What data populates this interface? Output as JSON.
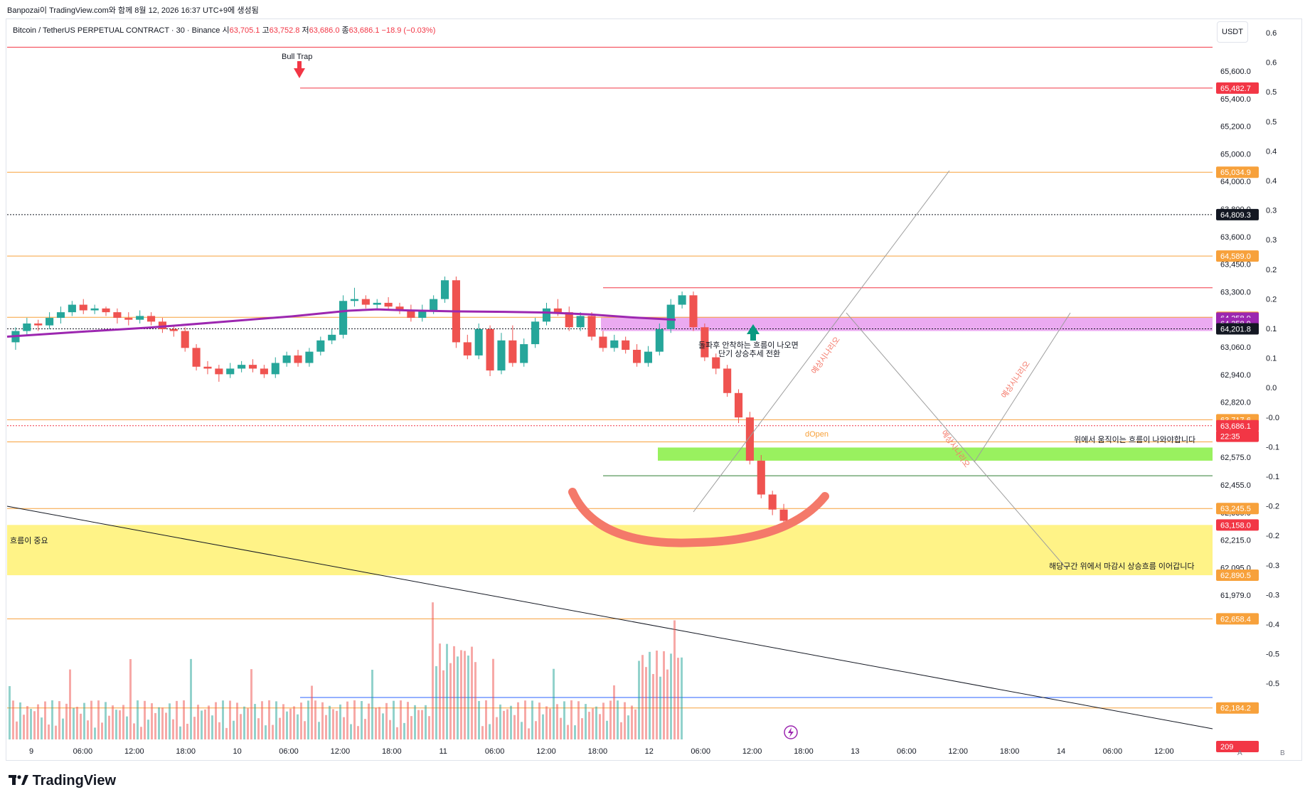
{
  "header": {
    "snapshot_text": "Banpozai이 TradingView.com와 함께 8월 12, 2026 16:37 UTC+9에 생성됨",
    "symbol": "Bitcoin / TetherUS PERPETUAL CONTRACT · 30 · Binance",
    "ohlc": {
      "open_label": "시",
      "open": "63,705.1",
      "high_label": "고",
      "high": "63,752.8",
      "low_label": "저",
      "low": "63,686.0",
      "close_label": "종",
      "close": "63,686.1",
      "change": "−18.9 (−0.03%)"
    },
    "currency": "USDT"
  },
  "footer": {
    "logo_text": "TradingView",
    "scale_buttons": [
      "A",
      "B"
    ]
  },
  "colors": {
    "up": "#26a69a",
    "down": "#ef5350",
    "orange_line": "#f7a13b",
    "red_line": "#f23645",
    "ma": "#9c27b0",
    "pink_zone": "#e9a1f0",
    "green_zone": "#8ef04e",
    "yellow_zone": "#fff27a",
    "curve": "#f4796a"
  },
  "chart_data": {
    "type": "candlestick",
    "timeframe": "30",
    "x_tick_labels": [
      "9",
      "06:00",
      "12:00",
      "18:00",
      "10",
      "06:00",
      "12:00",
      "18:00",
      "11",
      "06:00",
      "12:00",
      "18:00",
      "12",
      "06:00",
      "12:00",
      "18:00",
      "13",
      "06:00",
      "12:00",
      "18:00",
      "14",
      "06:00",
      "12:00"
    ],
    "y_tick_labels": [
      "65,600.0",
      "65,400.0",
      "65,200.0",
      "65,000.0",
      "64,000.0",
      "63,800.0",
      "63,600.0",
      "63,450.0",
      "63,300.0",
      "63,180.0",
      "63,060.0",
      "62,940.0",
      "62,820.0",
      "62,700.0",
      "62,575.0",
      "62,455.0",
      "62,335.0",
      "62,215.0",
      "62,095.0",
      "61,979.0"
    ],
    "ylim": [
      61960,
      65800
    ],
    "right_scale_labels": [
      "0.6",
      "0.6",
      "0.5",
      "0.5",
      "0.4",
      "0.4",
      "0.3",
      "0.3",
      "0.2",
      "0.2",
      "0.1",
      "0.1",
      "0.0",
      "-0.0",
      "-0.1",
      "-0.1",
      "-0.2",
      "-0.2",
      "-0.3",
      "-0.3",
      "-0.4",
      "-0.5",
      "-0.5"
    ],
    "price_tags": [
      {
        "label": "65,482.7",
        "color": "#f23645",
        "value": 65482.7
      },
      {
        "label": "65,034.9",
        "color": "#f7a13b",
        "value": 65034.9
      },
      {
        "label": "64,809.3",
        "color": "#131722",
        "value": 64809.3
      },
      {
        "label": "64,589.0",
        "color": "#f7a13b",
        "value": 64589.0
      },
      {
        "label": "64,263.0",
        "color": "#f7a13b",
        "value": 64263.0
      },
      {
        "label": "64,258.9",
        "color": "#9c27b0",
        "value": 64258.9
      },
      {
        "label": "64,258.9",
        "color": "#9c27b0",
        "value": 64230.0
      },
      {
        "label": "64,201.8",
        "color": "#131722",
        "value": 64201.8
      },
      {
        "label": "63,717.6",
        "color": "#f7a13b",
        "value": 63717.6
      },
      {
        "label": "63,686.1",
        "color": "#f23645",
        "value": 63686.1
      },
      {
        "label": "22:35",
        "color": "#f23645",
        "value": 63630.0
      },
      {
        "label": "63,245.5",
        "color": "#f7a13b",
        "value": 63245.5
      },
      {
        "label": "63,158.0",
        "color": "#f23645",
        "value": 63158.0
      },
      {
        "label": "62,890.5",
        "color": "#f7a13b",
        "value": 62890.5
      },
      {
        "label": "62,658.4",
        "color": "#f7a13b",
        "value": 62658.4
      },
      {
        "label": "62,184.2",
        "color": "#f7a13b",
        "value": 62184.2
      },
      {
        "label": "209",
        "color": "#f23645",
        "value": 61979.0
      }
    ],
    "horizontal_lines": [
      {
        "value": 65700,
        "color": "#f23645",
        "style": "solid",
        "x_start": "left"
      },
      {
        "value": 65482.7,
        "color": "#f23645",
        "style": "solid",
        "x_start": "bull-trap"
      },
      {
        "value": 65034.9,
        "color": "#f7a13b",
        "style": "solid",
        "x_start": "left"
      },
      {
        "value": 64809.3,
        "color": "#131722",
        "style": "dotted",
        "x_start": "left"
      },
      {
        "value": 64589.0,
        "color": "#f7a13b",
        "style": "solid",
        "x_start": "left"
      },
      {
        "value": 64420,
        "color": "#f23645",
        "style": "solid",
        "x_start": "day12-left"
      },
      {
        "value": 64263.0,
        "color": "#f7a13b",
        "style": "solid",
        "x_start": "left"
      },
      {
        "value": 64201.8,
        "color": "#131722",
        "style": "dotted",
        "x_start": "left"
      },
      {
        "value": 63717.6,
        "color": "#f7a13b",
        "style": "solid",
        "x_start": "left"
      },
      {
        "value": 63686.1,
        "color": "#f23645",
        "style": "dotted",
        "x_start": "left"
      },
      {
        "value": 63600,
        "color": "#f7a13b",
        "style": "solid",
        "x_start": "left"
      },
      {
        "value": 63420,
        "color": "#2e7d32",
        "style": "solid",
        "x_start": "day12-left"
      },
      {
        "value": 63245.5,
        "color": "#f7a13b",
        "style": "solid",
        "x_start": "left"
      },
      {
        "value": 62658.4,
        "color": "#f7a13b",
        "style": "solid",
        "x_start": "left"
      },
      {
        "value": 62240,
        "color": "#2962ff",
        "style": "solid",
        "x_start": "bull-trap"
      },
      {
        "value": 62184.2,
        "color": "#f7a13b",
        "style": "solid",
        "x_start": "left"
      }
    ],
    "zones": [
      {
        "name": "pink",
        "from": 64190,
        "to": 64265
      },
      {
        "name": "green",
        "from": 63500,
        "to": 63570
      },
      {
        "name": "yellow",
        "from": 62890.5,
        "to": 63158.0
      }
    ],
    "moving_average": [
      [
        0,
        64160
      ],
      [
        100,
        64185
      ],
      [
        200,
        64208
      ],
      [
        300,
        64238
      ],
      [
        400,
        64268
      ],
      [
        480,
        64298
      ],
      [
        520,
        64305
      ],
      [
        560,
        64300
      ],
      [
        620,
        64295
      ],
      [
        700,
        64292
      ],
      [
        760,
        64288
      ],
      [
        820,
        64278
      ],
      [
        880,
        64262
      ],
      [
        940,
        64250
      ]
    ],
    "candles": [
      [
        64130,
        64190,
        64090,
        64210
      ],
      [
        64190,
        64230,
        64170,
        64260
      ],
      [
        64230,
        64220,
        64190,
        64250
      ],
      [
        64220,
        64260,
        64200,
        64290
      ],
      [
        64260,
        64290,
        64230,
        64320
      ],
      [
        64290,
        64330,
        64270,
        64350
      ],
      [
        64330,
        64300,
        64280,
        64360
      ],
      [
        64300,
        64310,
        64280,
        64330
      ],
      [
        64310,
        64290,
        64270,
        64320
      ],
      [
        64290,
        64260,
        64230,
        64310
      ],
      [
        64260,
        64250,
        64220,
        64290
      ],
      [
        64250,
        64270,
        64230,
        64300
      ],
      [
        64270,
        64240,
        64220,
        64290
      ],
      [
        64240,
        64200,
        64180,
        64260
      ],
      [
        64200,
        64190,
        64160,
        64220
      ],
      [
        64190,
        64100,
        64080,
        64210
      ],
      [
        64100,
        64000,
        63980,
        64120
      ],
      [
        64000,
        63990,
        63960,
        64030
      ],
      [
        63990,
        63960,
        63920,
        64010
      ],
      [
        63960,
        63990,
        63940,
        64020
      ],
      [
        63990,
        64010,
        63970,
        64030
      ],
      [
        64010,
        63990,
        63970,
        64040
      ],
      [
        63990,
        63960,
        63940,
        64010
      ],
      [
        63960,
        64020,
        63940,
        64050
      ],
      [
        64020,
        64060,
        64000,
        64080
      ],
      [
        64060,
        64020,
        64000,
        64090
      ],
      [
        64020,
        64080,
        64000,
        64100
      ],
      [
        64080,
        64140,
        64060,
        64160
      ],
      [
        64140,
        64170,
        64120,
        64200
      ],
      [
        64170,
        64350,
        64150,
        64380
      ],
      [
        64350,
        64360,
        64320,
        64420
      ],
      [
        64360,
        64330,
        64310,
        64380
      ],
      [
        64330,
        64340,
        64310,
        64360
      ],
      [
        64340,
        64320,
        64300,
        64370
      ],
      [
        64320,
        64300,
        64280,
        64340
      ],
      [
        64300,
        64260,
        64240,
        64330
      ],
      [
        64260,
        64300,
        64240,
        64330
      ],
      [
        64300,
        64360,
        64280,
        64380
      ],
      [
        64360,
        64460,
        64340,
        64480
      ],
      [
        64460,
        64130,
        64100,
        64480
      ],
      [
        64130,
        64060,
        64040,
        64170
      ],
      [
        64060,
        64200,
        64040,
        64230
      ],
      [
        64200,
        63980,
        63950,
        64220
      ],
      [
        63980,
        64140,
        63960,
        64180
      ],
      [
        64140,
        64020,
        64000,
        64220
      ],
      [
        64020,
        64120,
        64000,
        64150
      ],
      [
        64120,
        64240,
        64100,
        64260
      ],
      [
        64240,
        64310,
        64220,
        64340
      ],
      [
        64310,
        64290,
        64270,
        64360
      ],
      [
        64290,
        64210,
        64190,
        64320
      ],
      [
        64210,
        64270,
        64190,
        64290
      ],
      [
        64270,
        64160,
        64140,
        64290
      ],
      [
        64160,
        64100,
        64080,
        64190
      ],
      [
        64100,
        64140,
        64080,
        64170
      ],
      [
        64140,
        64090,
        64070,
        64160
      ],
      [
        64090,
        64020,
        64000,
        64120
      ],
      [
        64020,
        64080,
        64000,
        64110
      ],
      [
        64080,
        64200,
        64060,
        64230
      ],
      [
        64200,
        64330,
        64180,
        64360
      ],
      [
        64330,
        64380,
        64310,
        64400
      ],
      [
        64380,
        64210,
        64190,
        64400
      ],
      [
        64210,
        64050,
        64030,
        64230
      ],
      [
        64050,
        63990,
        63960,
        64070
      ],
      [
        63990,
        63860,
        63840,
        64010
      ],
      [
        63860,
        63730,
        63700,
        63880
      ],
      [
        63730,
        63500,
        63480,
        63760
      ],
      [
        63500,
        63320,
        63300,
        63530
      ],
      [
        63320,
        63240,
        63210,
        63340
      ],
      [
        63240,
        63180,
        63150,
        63270
      ]
    ],
    "volume_note": "volume bars along bottom; label 209"
  },
  "annotations": {
    "bull_trap": "Bull Trap",
    "break_note_line1": "돌파후 안착하는 흐름이 나오면",
    "break_note_line2": "단기 상승추세 전환",
    "scenario_1": "예상시나리오",
    "scenario_2": "예상시나리오",
    "scenario_3": "예상시나리오",
    "dopen": "dOpen",
    "above_note": "위에서 움직이는 흐름이 나와야합니다",
    "zone_note": "해당구간 위에서 마감시 상승흐름 이어갑니다",
    "yellow_zone_label": "흐름이 중요"
  }
}
